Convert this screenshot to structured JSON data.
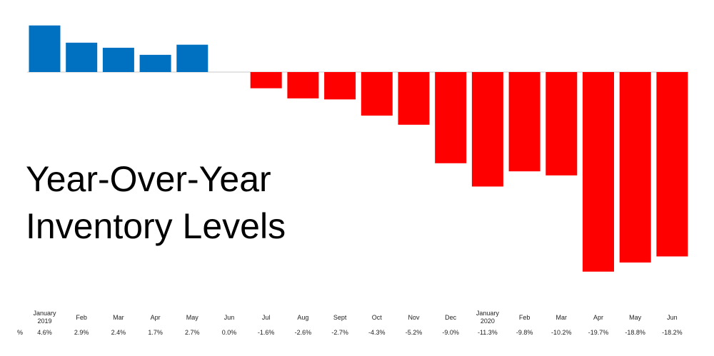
{
  "chart_data": {
    "type": "bar",
    "title": "Year-Over-Year Inventory Levels",
    "categories": [
      "January 2019",
      "Feb",
      "Mar",
      "Apr",
      "May",
      "Jun",
      "Jul",
      "Aug",
      "Sept",
      "Oct",
      "Nov",
      "Dec",
      "January 2020",
      "Feb",
      "Mar",
      "Apr",
      "May",
      "Jun"
    ],
    "values": [
      4.6,
      2.9,
      2.4,
      1.7,
      2.7,
      0.0,
      -1.6,
      -2.6,
      -2.7,
      -4.3,
      -5.2,
      -9.0,
      -11.3,
      -9.8,
      -10.2,
      -19.7,
      -18.8,
      -18.2
    ],
    "value_labels": [
      "4.6%",
      "2.9%",
      "2.4%",
      "1.7%",
      "2.7%",
      "0.0%",
      "-1.6%",
      "-2.6%",
      "-2.7%",
      "-4.3%",
      "-5.2%",
      "-9.0%",
      "-11.3%",
      "-9.8%",
      "-10.2%",
      "-19.7%",
      "-18.8%",
      "-18.2%"
    ],
    "row_label": "%",
    "positive_color": "#0070c0",
    "negative_color": "#ff0000"
  }
}
